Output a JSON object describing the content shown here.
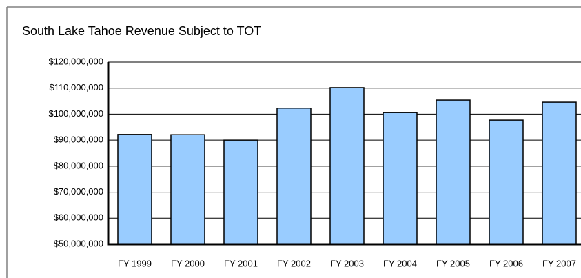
{
  "chart_data": {
    "type": "bar",
    "title": "South Lake Tahoe Revenue Subject to TOT",
    "categories": [
      "FY 1999",
      "FY 2000",
      "FY 2001",
      "FY 2002",
      "FY 2003",
      "FY 2004",
      "FY 2005",
      "FY 2006",
      "FY 2007"
    ],
    "values": [
      92200000,
      92100000,
      90000000,
      102300000,
      110200000,
      100600000,
      105400000,
      97700000,
      104600000
    ],
    "color": "#99ccff",
    "ylim": [
      50000000,
      120000000
    ],
    "yticks": [
      {
        "value": 50000000,
        "label": "$50,000,000"
      },
      {
        "value": 60000000,
        "label": "$60,000,000"
      },
      {
        "value": 70000000,
        "label": "$70,000,000"
      },
      {
        "value": 80000000,
        "label": "$80,000,000"
      },
      {
        "value": 90000000,
        "label": "$90,000,000"
      },
      {
        "value": 100000000,
        "label": "$100,000,000"
      },
      {
        "value": 110000000,
        "label": "$110,000,000"
      },
      {
        "value": 120000000,
        "label": "$120,000,000"
      }
    ],
    "grid": true
  }
}
